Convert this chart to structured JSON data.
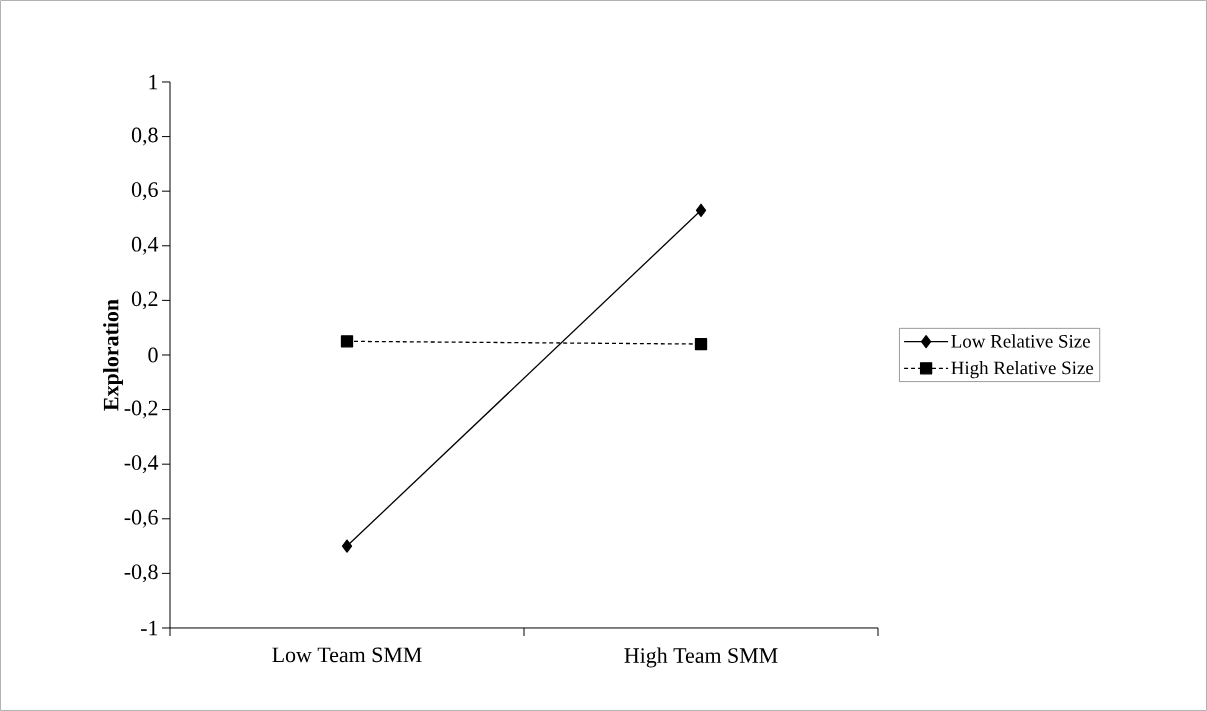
{
  "chart_data": {
    "type": "line",
    "ylabel": "**Exploration**",
    "categories": [
      "Low Team SMM",
      "High Team SMM"
    ],
    "series": [
      {
        "name": "Low Relative Size",
        "color": "#000000",
        "values": [
          -0.7,
          0.53
        ],
        "marker": "diamond",
        "line_style": "solid"
      },
      {
        "name": "High Relative Size",
        "color": "#000000",
        "values": [
          0.05,
          0.04
        ],
        "marker": "square",
        "line_style": "dashed"
      }
    ],
    "ylim": [
      -1,
      1
    ],
    "yticks": [
      -1,
      {
        "value": -0.8,
        "label": "-0,8"
      },
      {
        "value": -0.6,
        "label": "-0,6"
      },
      {
        "value": -0.4,
        "label": "-0,4"
      },
      {
        "value": -0.2,
        "label": "-0,2"
      },
      0,
      {
        "value": 0.2,
        "label": "0,2"
      },
      {
        "value": 0.4,
        "label": "0,4"
      },
      {
        "value": 0.6,
        "label": "0,6"
      },
      {
        "value": 0.8,
        "label": "0,8"
      },
      1
    ],
    "grid": false,
    "legend": "right"
  }
}
